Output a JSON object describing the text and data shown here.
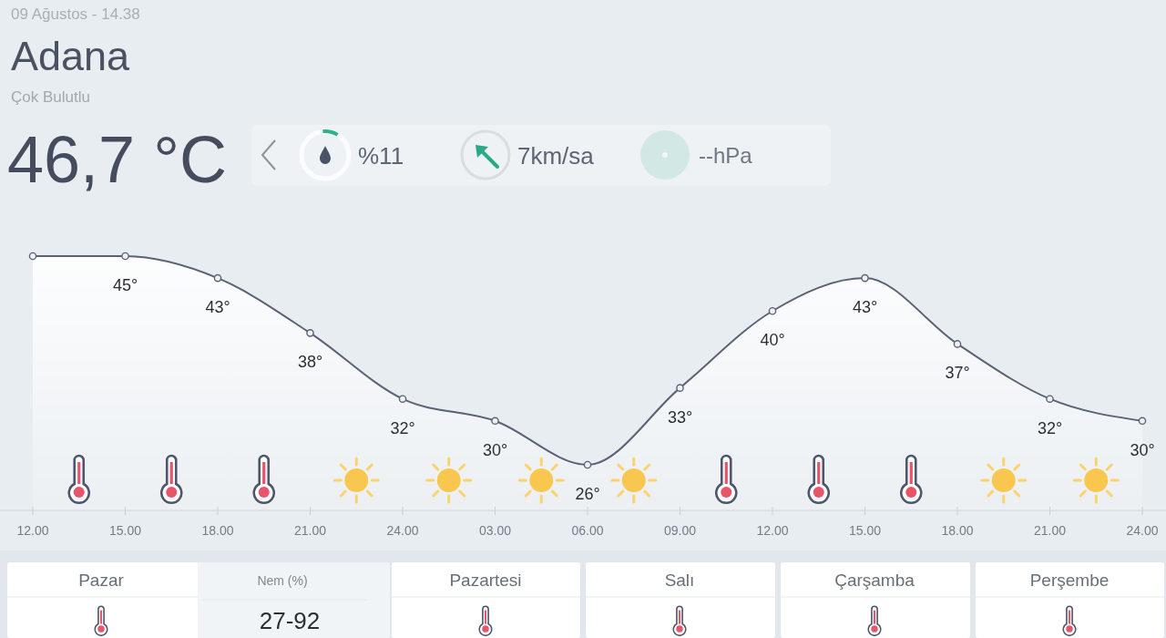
{
  "chart_data": {
    "type": "area",
    "title": "Adana",
    "subtitle": "Çok Bulutlu",
    "categories": [
      "12.00",
      "15.00",
      "18.00",
      "21.00",
      "24.00",
      "03.00",
      "06.00",
      "09.00",
      "12.00",
      "15.00",
      "18.00",
      "21.00",
      "24.00"
    ],
    "series": [
      {
        "color": "#5b6275",
        "values": [
          45,
          45,
          43,
          38,
          32,
          30,
          26,
          33,
          40,
          43,
          37,
          32,
          30
        ],
        "value_labels": [
          null,
          "45°",
          "43°",
          "38°",
          "32°",
          "30°",
          "26°",
          "33°",
          "40°",
          "43°",
          "37°",
          "32°",
          "30°"
        ]
      }
    ],
    "marker": "circle",
    "line_style": "solid",
    "annotations": [
      "09 Ağustos - 14.38",
      "46,7 °C",
      "%11",
      "7km/sa",
      "--hPa",
      "Pazar",
      "Nem (%)",
      "27-92",
      "Pazartesi",
      "Salı",
      "Çarşamba",
      "Perşembe"
    ]
  }
}
